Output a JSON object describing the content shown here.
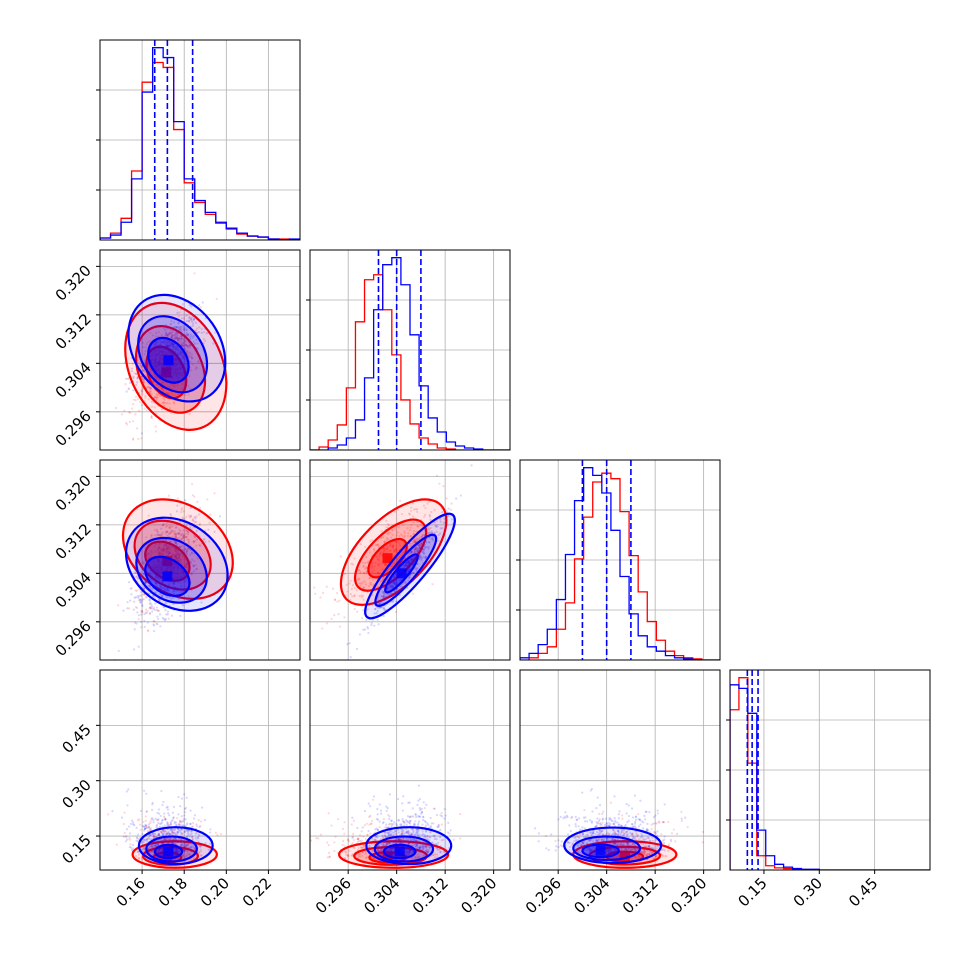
{
  "colors": {
    "series_blue": "#0000ff",
    "series_red": "#ff0000",
    "grid": "#b0b0b0",
    "axes": "#000000"
  },
  "chart_data": {
    "type": "corner",
    "title": "",
    "grid": true,
    "params": [
      {
        "range": [
          0.14,
          0.235
        ],
        "ticks": [
          0.16,
          0.18,
          0.2,
          0.22
        ],
        "tick_labels": [
          "0.16",
          "0.18",
          "0.20",
          "0.22"
        ]
      },
      {
        "range": [
          0.2897,
          0.3227
        ],
        "ticks": [
          0.296,
          0.304,
          0.312,
          0.32
        ],
        "tick_labels": [
          "0.296",
          "0.304",
          "0.312",
          "0.320"
        ]
      },
      {
        "range": [
          0.2897,
          0.3227
        ],
        "ticks": [
          0.296,
          0.304,
          0.312,
          0.32
        ],
        "tick_labels": [
          "0.296",
          "0.304",
          "0.312",
          "0.320"
        ]
      },
      {
        "range": [
          0.058,
          0.6
        ],
        "ticks": [
          0.15,
          0.3,
          0.45
        ],
        "tick_labels": [
          "0.15",
          "0.30",
          "0.45"
        ]
      }
    ],
    "series": [
      {
        "color": "blue",
        "means": [
          0.172,
          0.3055,
          0.3045,
          0.12
        ],
        "sigmas": [
          0.0065,
          0.0025,
          0.0035,
          0.03
        ],
        "quantiles": [
          [
            0.166,
            0.172,
            0.184
          ],
          [
            0.301,
            0.304,
            0.308
          ],
          [
            0.3,
            0.304,
            0.308
          ],
          [
            0.105,
            0.118,
            0.134
          ]
        ]
      },
      {
        "color": "red",
        "means": [
          0.172,
          0.303,
          0.3065,
          0.1
        ],
        "sigmas": [
          0.0065,
          0.0035,
          0.0035,
          0.025
        ]
      }
    ],
    "diagonal_hist": [
      {
        "edges": [
          0.14,
          0.145,
          0.15,
          0.155,
          0.16,
          0.165,
          0.17,
          0.175,
          0.18,
          0.185,
          0.19,
          0.195,
          0.2,
          0.205,
          0.21,
          0.215,
          0.22,
          0.225,
          0.23,
          0.235
        ],
        "blue": [
          2,
          5,
          18,
          62,
          150,
          195,
          185,
          120,
          62,
          40,
          28,
          18,
          12,
          7,
          4,
          3,
          1,
          0,
          1
        ],
        "red": [
          2,
          7,
          22,
          70,
          160,
          180,
          175,
          112,
          58,
          38,
          26,
          17,
          11,
          6,
          4,
          3,
          1,
          1,
          0
        ]
      },
      {
        "edges": [
          0.2897,
          0.2912,
          0.2927,
          0.2942,
          0.2957,
          0.2972,
          0.2987,
          0.3002,
          0.3017,
          0.3032,
          0.3047,
          0.3062,
          0.3077,
          0.3092,
          0.3107,
          0.3122,
          0.3137,
          0.3152,
          0.3167,
          0.3182,
          0.3197,
          0.3212,
          0.3227
        ],
        "blue": [
          0,
          0,
          2,
          5,
          12,
          30,
          72,
          140,
          185,
          192,
          165,
          115,
          64,
          32,
          18,
          8,
          4,
          2,
          1,
          0,
          0,
          0
        ],
        "red": [
          0,
          3,
          10,
          25,
          62,
          128,
          170,
          175,
          140,
          95,
          50,
          26,
          12,
          6,
          2,
          1,
          0,
          0,
          0,
          0,
          0,
          0
        ]
      },
      {
        "edges": [
          0.2897,
          0.2912,
          0.2927,
          0.2942,
          0.2957,
          0.2972,
          0.2987,
          0.3002,
          0.3017,
          0.3032,
          0.3047,
          0.3062,
          0.3077,
          0.3092,
          0.3107,
          0.3122,
          0.3137,
          0.3152,
          0.3167,
          0.3182,
          0.3197,
          0.3212,
          0.3227
        ],
        "blue": [
          2,
          6,
          14,
          28,
          55,
          96,
          145,
          175,
          168,
          152,
          118,
          76,
          42,
          22,
          12,
          8,
          4,
          2,
          1,
          0,
          0,
          0
        ],
        "red": [
          0,
          2,
          6,
          12,
          28,
          52,
          92,
          130,
          162,
          170,
          165,
          135,
          95,
          62,
          35,
          18,
          8,
          4,
          2,
          1,
          0,
          0
        ]
      },
      {
        "edges": [
          0.058,
          0.0822,
          0.1064,
          0.1306,
          0.1548,
          0.179,
          0.2032,
          0.2274,
          0.2516,
          0.2758,
          0.3,
          0.3242,
          0.3484,
          0.3726,
          0.3968,
          0.421,
          0.4452,
          0.4694,
          0.4936,
          0.5178,
          0.542,
          0.5662,
          0.6
        ],
        "blue": [
          260,
          255,
          220,
          56,
          20,
          8,
          4,
          2,
          1,
          1,
          0,
          0,
          0,
          0,
          0,
          0,
          0,
          0,
          0,
          0,
          0,
          0
        ],
        "red": [
          225,
          270,
          150,
          20,
          6,
          3,
          2,
          1,
          0,
          0,
          0,
          0,
          0,
          0,
          0,
          0,
          0,
          0,
          0,
          0,
          0,
          0
        ]
      }
    ],
    "pairs": [
      {
        "row": 1,
        "col": 0,
        "blue_contours": [
          {
            "cx": 0.1725,
            "cy": 0.3045,
            "rx": 0.0085,
            "ry": 0.004,
            "rot": -35
          },
          {
            "cx": 0.1745,
            "cy": 0.3055,
            "rx": 0.0145,
            "ry": 0.0068,
            "rot": -35
          },
          {
            "cx": 0.1765,
            "cy": 0.3065,
            "rx": 0.0205,
            "ry": 0.0095,
            "rot": -35
          }
        ],
        "red_contours": [
          {
            "cx": 0.1715,
            "cy": 0.3025,
            "rx": 0.0085,
            "ry": 0.0045,
            "rot": -25
          },
          {
            "cx": 0.1735,
            "cy": 0.303,
            "rx": 0.015,
            "ry": 0.0075,
            "rot": -25
          },
          {
            "cx": 0.176,
            "cy": 0.3035,
            "rx": 0.022,
            "ry": 0.011,
            "rot": -25
          }
        ]
      },
      {
        "row": 2,
        "col": 0,
        "blue_contours": [
          {
            "cx": 0.172,
            "cy": 0.3035,
            "rx": 0.008,
            "ry": 0.004,
            "rot": -55
          },
          {
            "cx": 0.174,
            "cy": 0.3045,
            "rx": 0.014,
            "ry": 0.0062,
            "rot": -55
          },
          {
            "cx": 0.1765,
            "cy": 0.3055,
            "rx": 0.02,
            "ry": 0.009,
            "rot": -55
          }
        ],
        "red_contours": [
          {
            "cx": 0.172,
            "cy": 0.306,
            "rx": 0.008,
            "ry": 0.004,
            "rot": -55
          },
          {
            "cx": 0.1745,
            "cy": 0.307,
            "rx": 0.0145,
            "ry": 0.0068,
            "rot": -55
          },
          {
            "cx": 0.177,
            "cy": 0.308,
            "rx": 0.021,
            "ry": 0.0098,
            "rot": -55
          }
        ]
      },
      {
        "row": 2,
        "col": 1,
        "blue_contours": [
          {
            "cx": 0.3048,
            "cy": 0.304,
            "rx": 0.004,
            "ry": 0.001,
            "rot": -50
          },
          {
            "cx": 0.3055,
            "cy": 0.3045,
            "rx": 0.0075,
            "ry": 0.0018,
            "rot": -50
          },
          {
            "cx": 0.3062,
            "cy": 0.3052,
            "rx": 0.011,
            "ry": 0.0028,
            "rot": -50
          }
        ],
        "red_contours": [
          {
            "cx": 0.3025,
            "cy": 0.3065,
            "rx": 0.004,
            "ry": 0.002,
            "rot": -45
          },
          {
            "cx": 0.303,
            "cy": 0.307,
            "rx": 0.0075,
            "ry": 0.0035,
            "rot": -45
          },
          {
            "cx": 0.3035,
            "cy": 0.3075,
            "rx": 0.011,
            "ry": 0.0055,
            "rot": -45
          }
        ]
      },
      {
        "row": 3,
        "col": 0,
        "blue_contours": [
          {
            "cx": 0.1725,
            "cy": 0.108,
            "rx": 0.0065,
            "ry": 0.018,
            "rot": 0
          },
          {
            "cx": 0.174,
            "cy": 0.115,
            "rx": 0.012,
            "ry": 0.034,
            "rot": 0
          },
          {
            "cx": 0.176,
            "cy": 0.124,
            "rx": 0.0175,
            "ry": 0.05,
            "rot": 0
          }
        ],
        "red_contours": [
          {
            "cx": 0.172,
            "cy": 0.092,
            "rx": 0.0065,
            "ry": 0.014,
            "rot": 0
          },
          {
            "cx": 0.1735,
            "cy": 0.096,
            "rx": 0.013,
            "ry": 0.024,
            "rot": 0
          },
          {
            "cx": 0.1755,
            "cy": 0.1,
            "rx": 0.02,
            "ry": 0.036,
            "rot": 0
          }
        ]
      },
      {
        "row": 3,
        "col": 1,
        "blue_contours": [
          {
            "cx": 0.3045,
            "cy": 0.108,
            "rx": 0.0026,
            "ry": 0.018,
            "rot": 0
          },
          {
            "cx": 0.3052,
            "cy": 0.115,
            "rx": 0.0048,
            "ry": 0.034,
            "rot": 0
          },
          {
            "cx": 0.306,
            "cy": 0.124,
            "rx": 0.007,
            "ry": 0.05,
            "rot": 0
          }
        ],
        "red_contours": [
          {
            "cx": 0.3025,
            "cy": 0.092,
            "rx": 0.003,
            "ry": 0.014,
            "rot": 0
          },
          {
            "cx": 0.303,
            "cy": 0.096,
            "rx": 0.006,
            "ry": 0.024,
            "rot": 0
          },
          {
            "cx": 0.3035,
            "cy": 0.1,
            "rx": 0.009,
            "ry": 0.036,
            "rot": 0
          }
        ]
      },
      {
        "row": 3,
        "col": 2,
        "blue_contours": [
          {
            "cx": 0.303,
            "cy": 0.11,
            "rx": 0.003,
            "ry": 0.017,
            "rot": 0
          },
          {
            "cx": 0.304,
            "cy": 0.117,
            "rx": 0.0055,
            "ry": 0.032,
            "rot": 0
          },
          {
            "cx": 0.305,
            "cy": 0.125,
            "rx": 0.008,
            "ry": 0.048,
            "rot": 0
          }
        ],
        "red_contours": [
          {
            "cx": 0.307,
            "cy": 0.094,
            "rx": 0.003,
            "ry": 0.014,
            "rot": 0
          },
          {
            "cx": 0.307,
            "cy": 0.097,
            "rx": 0.0058,
            "ry": 0.024,
            "rot": 0
          },
          {
            "cx": 0.307,
            "cy": 0.1,
            "rx": 0.0085,
            "ry": 0.036,
            "rot": 0
          }
        ]
      }
    ]
  }
}
